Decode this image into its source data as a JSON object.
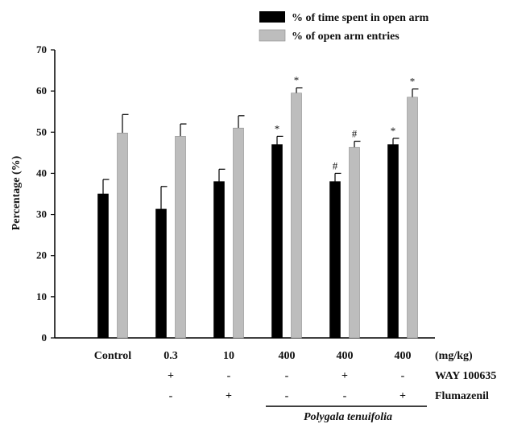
{
  "chart_data": {
    "type": "bar",
    "ylabel": "Percentage (%)",
    "ylim": [
      0,
      70
    ],
    "yticks": [
      "0",
      "10",
      "20",
      "30",
      "40",
      "50",
      "60",
      "70"
    ],
    "categories": [
      "Control",
      "0.3",
      "10",
      "400",
      "400",
      "400"
    ],
    "unit_label": "(mg/kg)",
    "series": [
      {
        "name": "% of time spent in open arm",
        "color": "#000000",
        "values": [
          35,
          31.3,
          38,
          47,
          38,
          47
        ],
        "errors": [
          3.5,
          5.5,
          3,
          2,
          2,
          1.5
        ],
        "marks": [
          "",
          "",
          "",
          "*",
          "#",
          "*"
        ]
      },
      {
        "name": "% of open arm entries",
        "color": "#bdbdbd",
        "values": [
          49.8,
          49,
          51,
          59.5,
          46.3,
          58.5
        ],
        "errors": [
          4.5,
          3,
          3,
          1.3,
          1.5,
          2
        ],
        "marks": [
          "",
          "",
          "",
          "*",
          "#",
          "*"
        ]
      }
    ],
    "treatments": [
      {
        "name": "WAY 100635",
        "signs": [
          "",
          "+",
          "-",
          "-",
          "+",
          "-"
        ]
      },
      {
        "name": "Flumazenil",
        "signs": [
          "",
          "-",
          "+",
          "-",
          "-",
          "+"
        ]
      }
    ],
    "group_label": "Polygala tenuifolia"
  }
}
